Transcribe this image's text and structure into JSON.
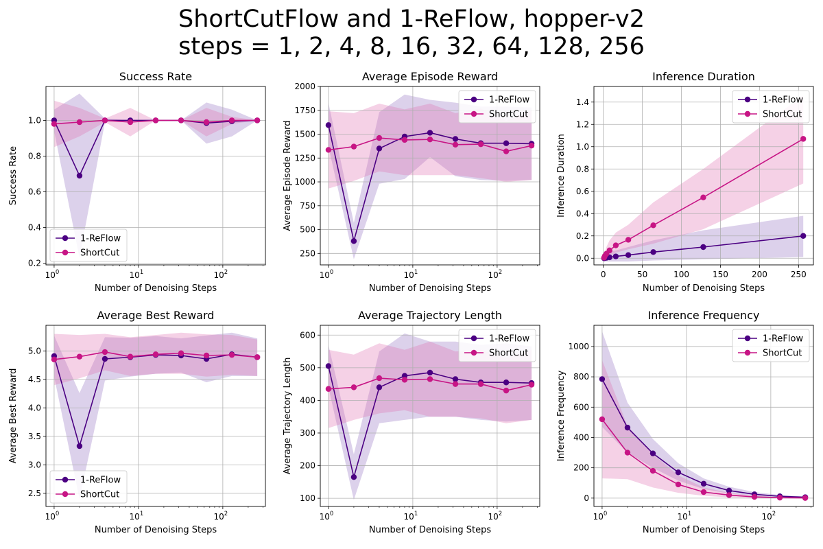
{
  "figure": {
    "title_line1": "ShortCutFlow and 1-ReFlow, hopper-v2",
    "title_line2": "steps = 1, 2, 4, 8, 16, 32, 64, 128, 256"
  },
  "colors": {
    "reflow": "#4b0082",
    "shortcut": "#c71585",
    "reflow_band": "#9370c0",
    "shortcut_band": "#e070b0",
    "grid": "#b0b0b0"
  },
  "chart_data": [
    {
      "type": "line",
      "title": "Success Rate",
      "xlabel": "Number of Denoising Steps",
      "ylabel": "Success Rate",
      "xscale": "log",
      "x": [
        1,
        2,
        4,
        8,
        16,
        32,
        64,
        128,
        256
      ],
      "xlim": [
        0.8,
        320
      ],
      "ylim": [
        0.19,
        1.19
      ],
      "yticks": [
        0.2,
        0.4,
        0.6,
        0.8,
        1.0
      ],
      "ytick_labels": [
        "0.2",
        "0.4",
        "0.6",
        "0.8",
        "1.0"
      ],
      "legend": "lower-left",
      "grid": true,
      "series": [
        {
          "name": "1-ReFlow",
          "values": [
            1.0,
            0.69,
            1.0,
            1.0,
            1.0,
            1.0,
            0.985,
            0.995,
            1.0
          ],
          "band_low": [
            0.94,
            0.23,
            0.99,
            1.0,
            1.0,
            1.0,
            0.87,
            0.91,
            1.0
          ],
          "band_high": [
            1.06,
            1.15,
            1.01,
            1.0,
            1.0,
            1.0,
            1.1,
            1.06,
            1.0
          ]
        },
        {
          "name": "ShortCut",
          "values": [
            0.98,
            0.99,
            1.0,
            0.99,
            1.0,
            1.0,
            0.99,
            1.0,
            1.0
          ],
          "band_low": [
            0.85,
            0.91,
            0.99,
            0.91,
            1.0,
            1.0,
            0.91,
            0.98,
            1.0
          ],
          "band_high": [
            1.11,
            1.07,
            1.01,
            1.07,
            1.0,
            1.0,
            1.07,
            1.02,
            1.0
          ]
        }
      ]
    },
    {
      "type": "line",
      "title": "Average Episode Reward",
      "xlabel": "Number of Denoising Steps",
      "ylabel": "Average Episode Reward",
      "xscale": "log",
      "x": [
        1,
        2,
        4,
        8,
        16,
        32,
        64,
        128,
        256
      ],
      "xlim": [
        0.8,
        320
      ],
      "ylim": [
        130,
        2000
      ],
      "yticks": [
        250,
        500,
        750,
        1000,
        1250,
        1500,
        1750,
        2000
      ],
      "ytick_labels": [
        "250",
        "500",
        "750",
        "1000",
        "1250",
        "1500",
        "1750",
        "2000"
      ],
      "legend": "upper-right",
      "grid": true,
      "series": [
        {
          "name": "1-ReFlow",
          "values": [
            1595,
            380,
            1350,
            1475,
            1515,
            1450,
            1405,
            1405,
            1400
          ],
          "band_low": [
            1370,
            190,
            980,
            1030,
            1260,
            1060,
            1020,
            1010,
            1020
          ],
          "band_high": [
            1830,
            570,
            1730,
            1915,
            1860,
            1830,
            1790,
            1790,
            1780
          ]
        },
        {
          "name": "ShortCut",
          "values": [
            1335,
            1370,
            1460,
            1440,
            1445,
            1390,
            1395,
            1320,
            1380
          ],
          "band_low": [
            930,
            1010,
            1110,
            1070,
            1070,
            1070,
            1040,
            1000,
            1020
          ],
          "band_high": [
            1740,
            1720,
            1820,
            1760,
            1820,
            1720,
            1770,
            1640,
            1750
          ]
        }
      ]
    },
    {
      "type": "line",
      "title": "Inference Duration",
      "xlabel": "Number of Denoising Steps",
      "ylabel": "Inference Duration",
      "xscale": "linear",
      "x": [
        1,
        2,
        4,
        8,
        16,
        32,
        64,
        128,
        256
      ],
      "xlim": [
        -12,
        269
      ],
      "xticks": [
        0,
        50,
        100,
        150,
        200,
        250
      ],
      "xtick_labels": [
        "0",
        "50",
        "100",
        "150",
        "200",
        "250"
      ],
      "ylim": [
        -0.06,
        1.54
      ],
      "yticks": [
        0.0,
        0.2,
        0.4,
        0.6,
        0.8,
        1.0,
        1.2,
        1.4
      ],
      "ytick_labels": [
        "0.0",
        "0.2",
        "0.4",
        "0.6",
        "0.8",
        "1.0",
        "1.2",
        "1.4"
      ],
      "legend": "upper-right",
      "grid": true,
      "series": [
        {
          "name": "1-ReFlow",
          "values": [
            0.0,
            0.002,
            0.004,
            0.008,
            0.016,
            0.028,
            0.055,
            0.1,
            0.2
          ],
          "band_low": [
            -0.03,
            -0.03,
            -0.03,
            -0.03,
            -0.03,
            -0.03,
            -0.02,
            -0.01,
            0.01
          ],
          "band_high": [
            0.03,
            0.04,
            0.05,
            0.06,
            0.07,
            0.1,
            0.16,
            0.25,
            0.38
          ]
        },
        {
          "name": "ShortCut",
          "values": [
            0.005,
            0.02,
            0.04,
            0.07,
            0.115,
            0.165,
            0.295,
            0.545,
            1.07
          ],
          "band_low": [
            -0.01,
            -0.01,
            0.0,
            0.02,
            0.05,
            0.08,
            0.13,
            0.26,
            0.67
          ],
          "band_high": [
            0.02,
            0.05,
            0.1,
            0.16,
            0.23,
            0.3,
            0.5,
            0.8,
            1.46
          ]
        }
      ]
    },
    {
      "type": "line",
      "title": "Average Best Reward",
      "xlabel": "Number of Denoising Steps",
      "ylabel": "Average Best Reward",
      "xscale": "log",
      "x": [
        1,
        2,
        4,
        8,
        16,
        32,
        64,
        128,
        256
      ],
      "xlim": [
        0.8,
        320
      ],
      "ylim": [
        2.27,
        5.45
      ],
      "yticks": [
        2.5,
        3.0,
        3.5,
        4.0,
        4.5,
        5.0
      ],
      "ytick_labels": [
        "2.5",
        "3.0",
        "3.5",
        "4.0",
        "4.5",
        "5.0"
      ],
      "legend": "lower-left",
      "grid": true,
      "series": [
        {
          "name": "1-ReFlow",
          "values": [
            4.91,
            3.33,
            4.86,
            4.89,
            4.93,
            4.92,
            4.86,
            4.94,
            4.89
          ],
          "band_low": [
            4.55,
            2.4,
            4.48,
            4.55,
            4.6,
            4.62,
            4.45,
            4.56,
            4.56
          ],
          "band_high": [
            5.27,
            4.26,
            5.24,
            5.23,
            5.26,
            5.22,
            5.27,
            5.32,
            5.22
          ]
        },
        {
          "name": "ShortCut",
          "values": [
            4.85,
            4.9,
            4.98,
            4.9,
            4.94,
            4.96,
            4.92,
            4.93,
            4.89
          ],
          "band_low": [
            4.4,
            4.52,
            4.66,
            4.56,
            4.6,
            4.6,
            4.55,
            4.58,
            4.56
          ],
          "band_high": [
            5.3,
            5.28,
            5.3,
            5.24,
            5.28,
            5.32,
            5.29,
            5.28,
            5.2
          ]
        }
      ]
    },
    {
      "type": "line",
      "title": "Average Trajectory Length",
      "xlabel": "Number of Denoising Steps",
      "ylabel": "Average Trajectory Length",
      "xscale": "log",
      "x": [
        1,
        2,
        4,
        8,
        16,
        32,
        64,
        128,
        256
      ],
      "xlim": [
        0.8,
        320
      ],
      "ylim": [
        75,
        630
      ],
      "yticks": [
        100,
        200,
        300,
        400,
        500,
        600
      ],
      "ytick_labels": [
        "100",
        "200",
        "300",
        "400",
        "500",
        "600"
      ],
      "legend": "upper-right",
      "grid": true,
      "series": [
        {
          "name": "1-ReFlow",
          "values": [
            505,
            165,
            440,
            475,
            485,
            465,
            455,
            455,
            453
          ],
          "band_low": [
            440,
            95,
            330,
            340,
            350,
            350,
            340,
            335,
            340
          ],
          "band_high": [
            570,
            235,
            550,
            605,
            580,
            580,
            570,
            575,
            565
          ]
        },
        {
          "name": "ShortCut",
          "values": [
            435,
            440,
            468,
            463,
            465,
            450,
            450,
            430,
            448
          ],
          "band_low": [
            315,
            340,
            360,
            370,
            350,
            350,
            345,
            330,
            340
          ],
          "band_high": [
            555,
            540,
            575,
            555,
            580,
            550,
            555,
            530,
            555
          ]
        }
      ]
    },
    {
      "type": "line",
      "title": "Inference Frequency",
      "xlabel": "Number of Denoising Steps",
      "ylabel": "Inference Frequency",
      "xscale": "log",
      "x": [
        1,
        2,
        4,
        8,
        16,
        32,
        64,
        128,
        256
      ],
      "xlim": [
        0.8,
        320
      ],
      "ylim": [
        -55,
        1140
      ],
      "yticks": [
        0,
        200,
        400,
        600,
        800,
        1000
      ],
      "ytick_labels": [
        "0",
        "200",
        "400",
        "600",
        "800",
        "1000"
      ],
      "legend": "upper-right",
      "grid": true,
      "series": [
        {
          "name": "1-ReFlow",
          "values": [
            785,
            465,
            295,
            170,
            95,
            50,
            25,
            12,
            6
          ],
          "band_low": [
            470,
            300,
            200,
            115,
            60,
            30,
            15,
            5,
            2
          ],
          "band_high": [
            1100,
            630,
            390,
            230,
            130,
            75,
            40,
            20,
            10
          ]
        },
        {
          "name": "ShortCut",
          "values": [
            520,
            300,
            180,
            90,
            40,
            20,
            8,
            3,
            1
          ],
          "band_low": [
            130,
            125,
            70,
            35,
            15,
            5,
            1,
            0,
            0
          ],
          "band_high": [
            910,
            475,
            290,
            150,
            70,
            35,
            15,
            6,
            2
          ]
        }
      ]
    }
  ]
}
